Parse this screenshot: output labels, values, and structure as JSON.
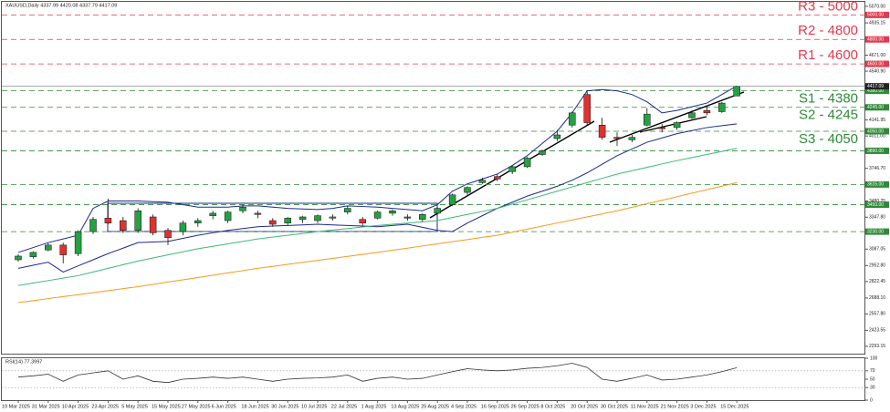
{
  "chart_data": {
    "type": "candlestick",
    "title": "XAUUSD,Daily  4337.99 4420.08 4337.79 4417.09",
    "categories": [
      "19 Mar 2025",
      null,
      "31 Mar 2025",
      null,
      "10 Apr 2025",
      null,
      "23 Apr 2025",
      null,
      "5 May 2025",
      null,
      "15 May 2025",
      null,
      "27 May 2025",
      null,
      "6 Jun 2025",
      null,
      "18 Jun 2025",
      null,
      "30 Jun 2025",
      null,
      "10 Jul 2025",
      null,
      "22 Jul 2025",
      null,
      "1 Aug 2025",
      null,
      "13 Aug 2025",
      null,
      "25 Aug 2025",
      null,
      "4 Sep 2025",
      null,
      "16 Sep 2025",
      null,
      "26 Sep 2025",
      null,
      "8 Oct 2025",
      null,
      "20 Oct 2025",
      null,
      "30 Oct 2025",
      null,
      "11 Nov 2025",
      null,
      "21 Nov 2025",
      null,
      "3 Dec 2025",
      null,
      "15 Dec 2025"
    ],
    "open": [
      3000,
      3025,
      3080,
      3120,
      3050,
      3230,
      3340,
      3320,
      3240,
      3350,
      3240,
      3230,
      3300,
      3360,
      3320,
      3400,
      3380,
      3320,
      3300,
      3330,
      3320,
      3340,
      3390,
      3330,
      3340,
      3380,
      3350,
      3330,
      3380,
      3450,
      3550,
      3630,
      3680,
      3720,
      3760,
      3860,
      3990,
      4100,
      4350,
      4100,
      4000,
      3980,
      4100,
      4080,
      4080,
      4160,
      4220,
      4210,
      4337.99
    ],
    "high": [
      3045,
      3070,
      3135,
      3140,
      3240,
      3350,
      3500,
      3350,
      3420,
      3370,
      3260,
      3320,
      3340,
      3400,
      3400,
      3450,
      3400,
      3340,
      3350,
      3360,
      3370,
      3370,
      3440,
      3350,
      3400,
      3410,
      3370,
      3380,
      3430,
      3540,
      3600,
      3670,
      3700,
      3770,
      3840,
      3900,
      4060,
      4210,
      4380,
      4160,
      4040,
      4020,
      4240,
      4110,
      4130,
      4220,
      4250,
      4290,
      4420.08
    ],
    "low": [
      2985,
      3010,
      3070,
      2970,
      3030,
      3210,
      3290,
      3220,
      3220,
      3200,
      3120,
      3200,
      3270,
      3330,
      3300,
      3380,
      3340,
      3270,
      3280,
      3300,
      3300,
      3320,
      3370,
      3280,
      3330,
      3360,
      3320,
      3310,
      3370,
      3440,
      3530,
      3620,
      3640,
      3700,
      3750,
      3850,
      3970,
      4080,
      4100,
      3980,
      3930,
      3960,
      4090,
      4040,
      4060,
      4150,
      4180,
      4200,
      4337.79
    ],
    "close": [
      3030,
      3060,
      3120,
      3040,
      3230,
      3330,
      3300,
      3240,
      3400,
      3220,
      3180,
      3300,
      3320,
      3380,
      3390,
      3430,
      3370,
      3290,
      3340,
      3350,
      3360,
      3350,
      3420,
      3300,
      3390,
      3400,
      3340,
      3370,
      3420,
      3530,
      3590,
      3650,
      3660,
      3760,
      3830,
      3890,
      4020,
      4200,
      4120,
      4000,
      3990,
      4000,
      4190,
      4070,
      4120,
      4200,
      4200,
      4280,
      4417.09
    ],
    "up_color": "#26a042",
    "down_color": "#e0312f",
    "lines": [
      {
        "color": "#1c2a8f",
        "values": [
          3060,
          3100,
          3140,
          3170,
          3200,
          3420,
          3480,
          3480,
          3480,
          3475,
          3470,
          3450,
          3430,
          3430,
          3430,
          3440,
          3440,
          3430,
          3420,
          3415,
          3410,
          3420,
          3440,
          3435,
          3430,
          3420,
          3410,
          3400,
          3450,
          3560,
          3620,
          3660,
          3700,
          3770,
          3850,
          3950,
          4050,
          4200,
          4380,
          4390,
          4380,
          4350,
          4290,
          4200,
          4220,
          4250,
          4280,
          4350,
          4420
        ]
      },
      {
        "color": "#1c2a8f",
        "values": [
          2930,
          2955,
          2980,
          2900,
          2950,
          3000,
          3050,
          3095,
          3140,
          3145,
          3150,
          3175,
          3200,
          3220,
          3240,
          3255,
          3270,
          3275,
          3280,
          3285,
          3290,
          3285,
          3280,
          3275,
          3270,
          3280,
          3290,
          3265,
          3240,
          3230,
          3300,
          3360,
          3420,
          3470,
          3520,
          3560,
          3600,
          3650,
          3710,
          3780,
          3850,
          3905,
          3960,
          3995,
          4030,
          4055,
          4080,
          4095,
          4110
        ]
      },
      {
        "color": "#3cb878",
        "values": [
          2790,
          2810,
          2830,
          2850,
          2870,
          2900,
          2930,
          2960,
          2990,
          3015,
          3040,
          3065,
          3090,
          3110,
          3130,
          3150,
          3170,
          3185,
          3200,
          3215,
          3230,
          3243,
          3255,
          3268,
          3280,
          3290,
          3300,
          3310,
          3320,
          3345,
          3370,
          3395,
          3420,
          3455,
          3490,
          3525,
          3560,
          3595,
          3630,
          3665,
          3700,
          3728,
          3755,
          3783,
          3810,
          3835,
          3860,
          3885,
          3910
        ]
      },
      {
        "color": "#f59a1b",
        "values": [
          2650,
          2666,
          2683,
          2699,
          2715,
          2731,
          2748,
          2764,
          2780,
          2799,
          2818,
          2836,
          2855,
          2874,
          2893,
          2911,
          2930,
          2946,
          2963,
          2979,
          2995,
          3011,
          3028,
          3044,
          3060,
          3078,
          3095,
          3113,
          3130,
          3148,
          3165,
          3183,
          3200,
          3225,
          3250,
          3275,
          3300,
          3325,
          3350,
          3375,
          3400,
          3429,
          3458,
          3486,
          3515,
          3544,
          3573,
          3601,
          3630
        ]
      }
    ],
    "levels": [
      {
        "value": 5000,
        "label": "R3 - 5000",
        "price_label": "5000.00",
        "color": "#e23a4e"
      },
      {
        "value": 4800,
        "label": "R2 - 4800",
        "price_label": "4800.00",
        "color": "#e23a4e"
      },
      {
        "value": 4600,
        "label": "R1 - 4600",
        "price_label": "4600.00",
        "color": "#e23a4e"
      },
      {
        "value": 4380,
        "label": "S1 - 4380",
        "price_label": "4380.00",
        "color": "#2f8a36"
      },
      {
        "value": 4245,
        "label": "S2 - 4245",
        "price_label": "4245.00",
        "color": "#2f8a36"
      },
      {
        "value": 4050,
        "label": "S3 - 4050",
        "price_label": "4050.00",
        "color": "#2f8a36"
      },
      {
        "value": 3890,
        "price_label": "3890.00",
        "color": "#2f8a36"
      },
      {
        "value": 3615,
        "price_label": "3615.00",
        "color": "#2f8a36"
      },
      {
        "value": 3450,
        "price_label": "3450.00",
        "color": "#2f8a36"
      },
      {
        "value": 3230,
        "price_label": "3230.00",
        "color": "#2f8a36"
      }
    ],
    "last": 4417.09,
    "ylim": [
      2233,
      5107
    ],
    "yticks": [
      {
        "value": 5070,
        "label": "5070.00"
      },
      {
        "value": 4935.15,
        "label": "4935.15"
      },
      {
        "value": 4671,
        "label": "4671.00"
      },
      {
        "value": 4540.9,
        "label": "4540.90"
      },
      {
        "value": 4141.95,
        "label": "4141.95"
      },
      {
        "value": 4011,
        "label": "4011.00"
      },
      {
        "value": 3746.7,
        "label": "3746.70"
      },
      {
        "value": 3480.25,
        "label": "3480.25"
      },
      {
        "value": 3347.8,
        "label": "3347.80"
      },
      {
        "value": 3087.05,
        "label": "3087.05"
      },
      {
        "value": 2952.8,
        "label": "2952.80"
      },
      {
        "value": 2822.45,
        "label": "2822.45"
      },
      {
        "value": 2688.1,
        "label": "2688.10"
      },
      {
        "value": 2557.8,
        "label": "2557.80"
      },
      {
        "value": 2423.55,
        "label": "2423.55"
      },
      {
        "value": 2293.15,
        "label": "2293.15"
      }
    ],
    "rsi": {
      "label": "RSI(14) 77.3997",
      "color": "#333333",
      "values": [
        55,
        58,
        62,
        45,
        60,
        65,
        70,
        50,
        58,
        45,
        42,
        50,
        52,
        55,
        52,
        55,
        50,
        45,
        50,
        52,
        53,
        55,
        60,
        45,
        52,
        55,
        50,
        52,
        60,
        68,
        75,
        72,
        70,
        72,
        76,
        78,
        82,
        88,
        78,
        50,
        45,
        52,
        60,
        48,
        50,
        55,
        60,
        68,
        77.3997
      ],
      "ylim": [
        0,
        100
      ],
      "yticks": [
        100,
        70,
        50,
        30,
        0
      ],
      "levels": [
        70,
        30
      ]
    }
  }
}
